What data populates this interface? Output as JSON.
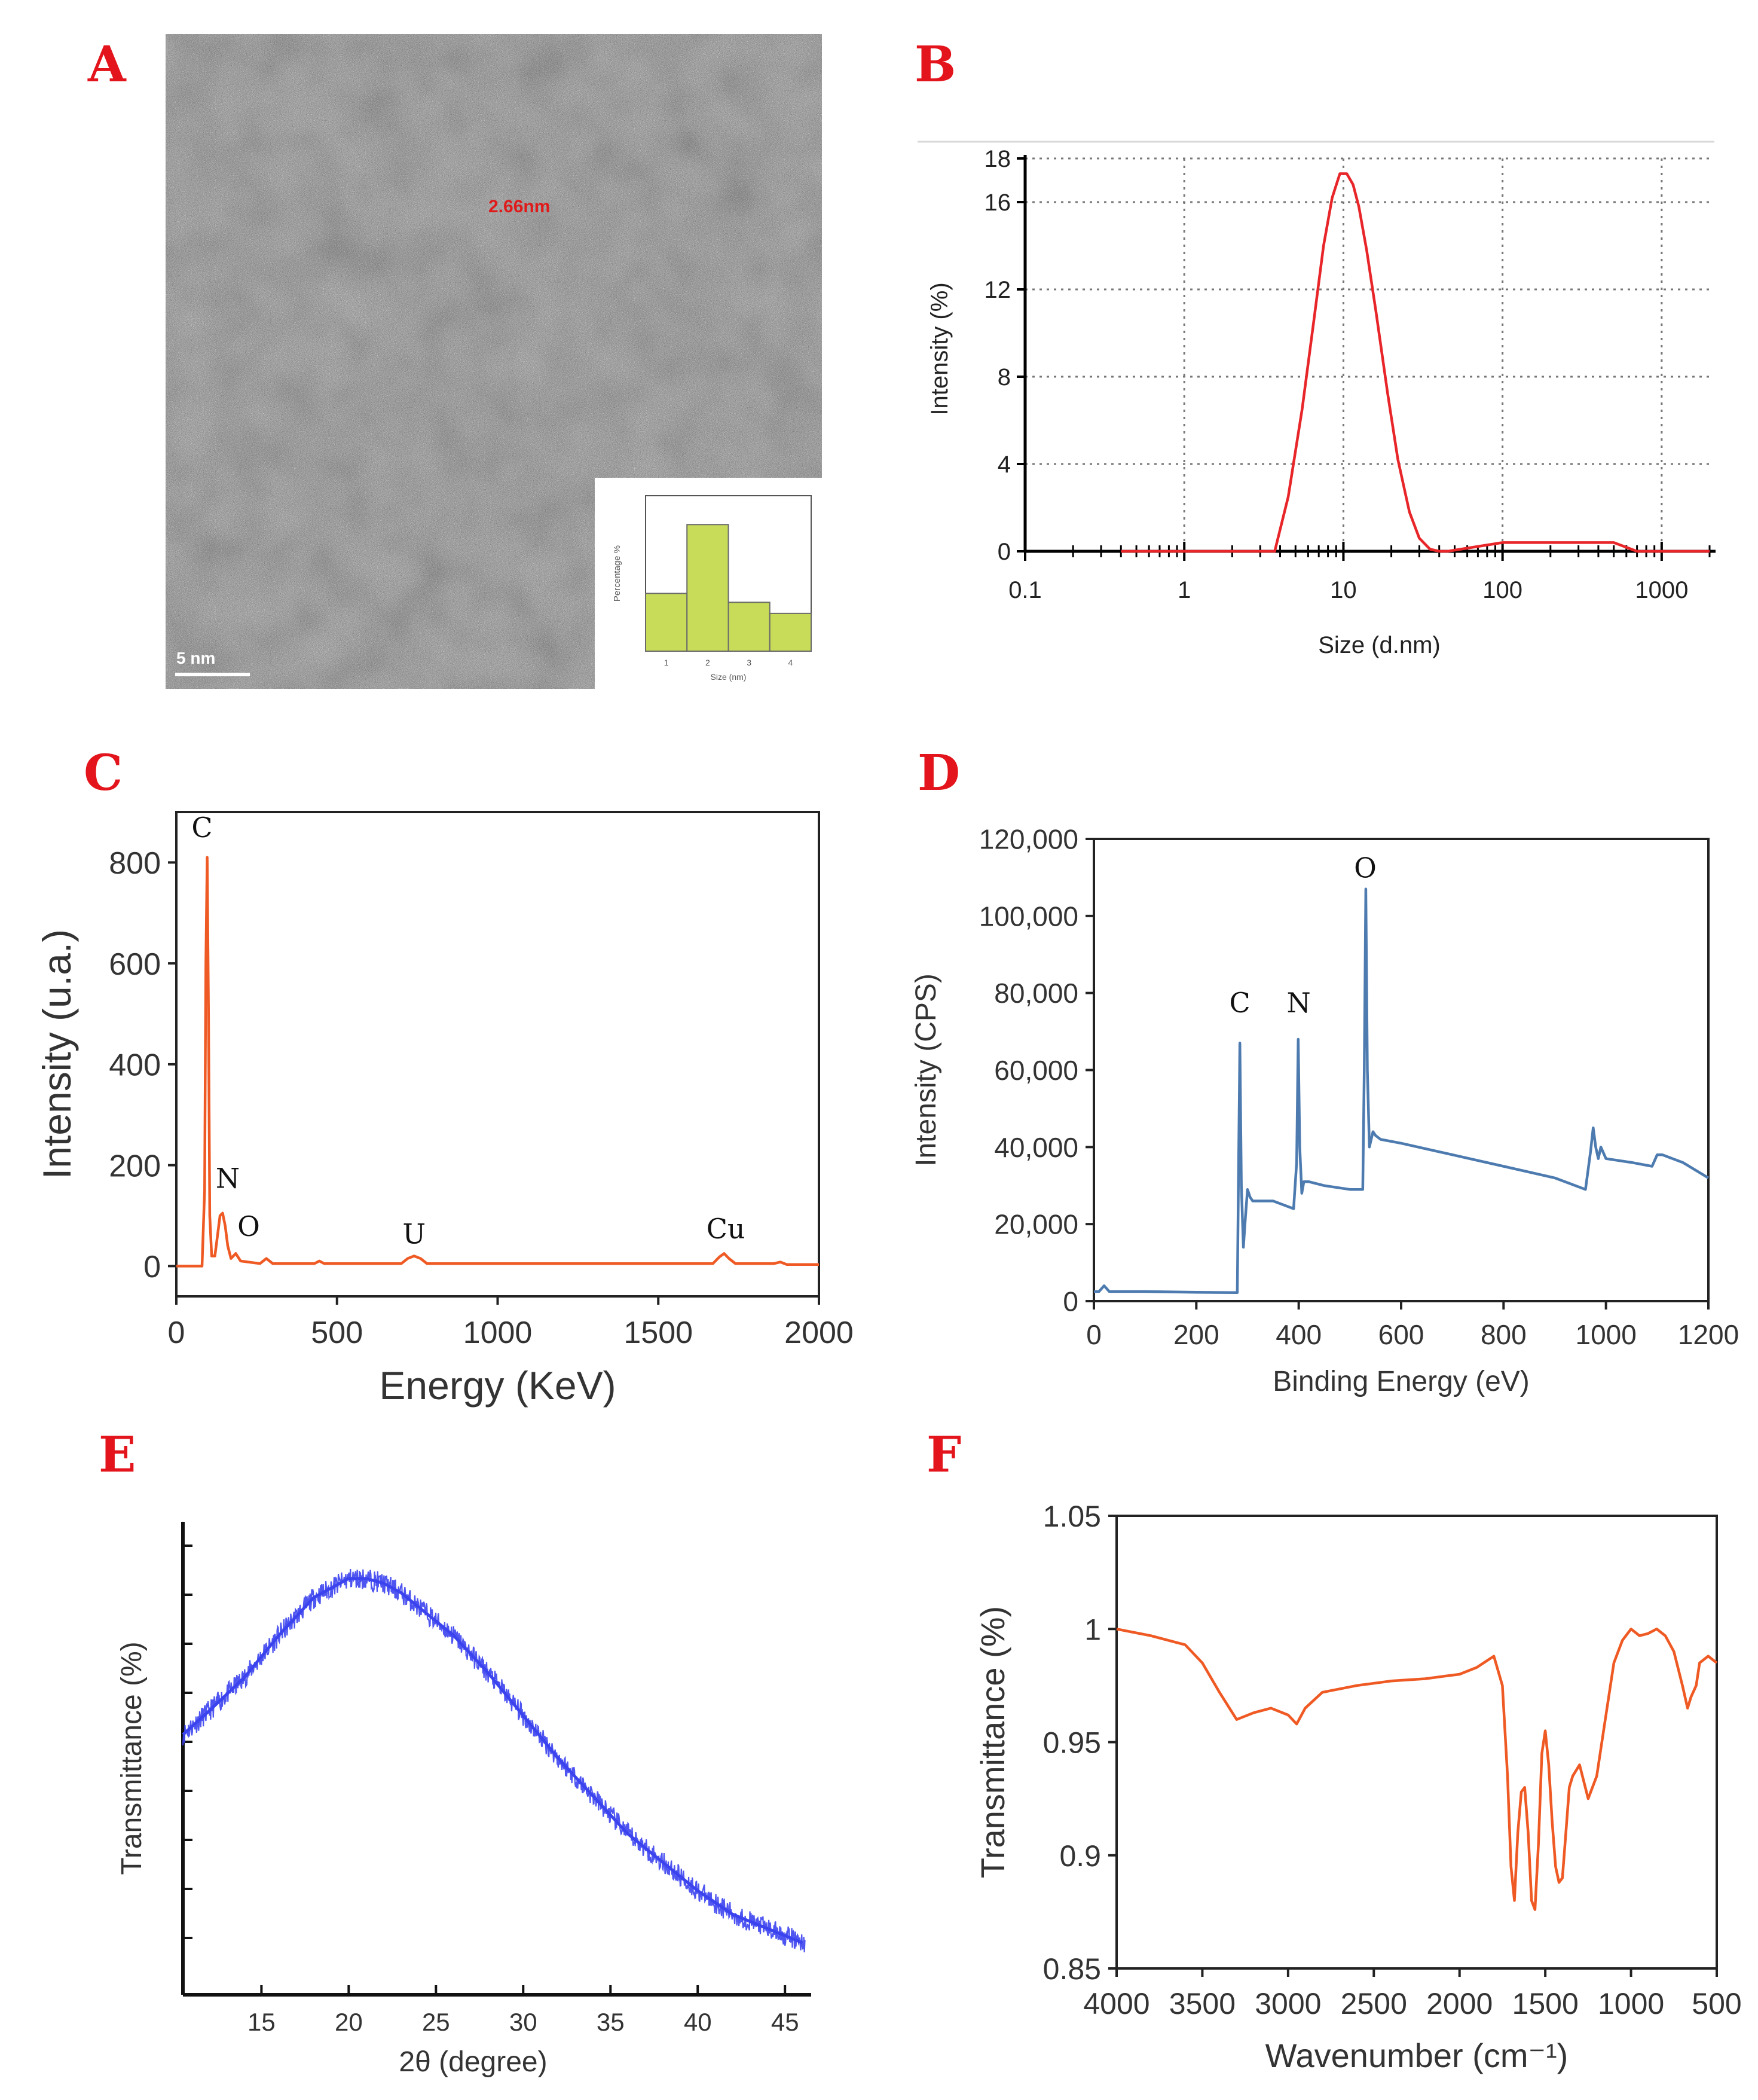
{
  "panels": {
    "A": "A",
    "B": "B",
    "C": "C",
    "D": "D",
    "E": "E",
    "F": "F"
  },
  "colors": {
    "panel_letter": "#e3141b",
    "red": "#e8262a",
    "blue_xps": "#4d7bb0",
    "blue_xrd": "#3b43ee",
    "orange_ftir": "#ef5a24",
    "inset_bar": "#c8dc5a"
  },
  "tem": {
    "measurement_label": "2.66nm",
    "scale_bar_label": "5 nm",
    "inset": {
      "type": "bar",
      "ylabel": "Percentage %",
      "xlabel": "Size (nm)",
      "x_ticks": [
        "1",
        "2",
        "3",
        "4"
      ],
      "categories": [
        "1",
        "2",
        "3",
        "4"
      ],
      "values": [
        26,
        57,
        22,
        17
      ],
      "ylim": [
        0,
        70
      ]
    }
  },
  "chart_data": [
    {
      "id": "B",
      "type": "line",
      "xscale": "log",
      "xlabel": "Size (d.nm)",
      "ylabel": "Intensity (%)",
      "xlim": [
        0.1,
        2000
      ],
      "ylim": [
        0,
        18
      ],
      "x_ticks": [
        0.1,
        1,
        10,
        100,
        1000
      ],
      "x_tick_labels": [
        "0.1",
        "1",
        "10",
        "100",
        "1000"
      ],
      "y_ticks": [
        0,
        4,
        8,
        12,
        16,
        18
      ],
      "y_tick_labels": [
        "0",
        "4",
        "8",
        "12",
        "16",
        "18"
      ],
      "grid": true,
      "series": [
        {
          "name": "Intensity",
          "color": "#e8262a",
          "x": [
            0.4,
            3.7,
            4.5,
            5.5,
            6.5,
            7.5,
            8.5,
            9.5,
            10.5,
            11.5,
            12.5,
            14,
            16,
            19,
            22,
            26,
            30,
            35,
            40,
            45,
            100,
            200,
            500,
            700,
            2000
          ],
          "y": [
            0,
            0,
            2.5,
            6.5,
            10.5,
            14,
            16.2,
            17.3,
            17.3,
            16.8,
            15.8,
            13.8,
            11,
            7.2,
            4.2,
            1.8,
            0.6,
            0.1,
            0,
            0,
            0.4,
            0.4,
            0.4,
            0,
            0
          ]
        }
      ]
    },
    {
      "id": "C",
      "type": "line",
      "xlabel": "Energy (KeV)",
      "ylabel": "Intensity (u.a.)",
      "xlim": [
        0,
        2000
      ],
      "ylim": [
        -60,
        900
      ],
      "x_ticks": [
        0,
        500,
        1000,
        1500,
        2000
      ],
      "x_tick_labels": [
        "0",
        "500",
        "1000",
        "1500",
        "2000"
      ],
      "y_ticks": [
        0,
        200,
        400,
        600,
        800
      ],
      "y_tick_labels": [
        "0",
        "200",
        "400",
        "600",
        "800"
      ],
      "annotations": [
        {
          "text": "C",
          "x": 80,
          "y": 850
        },
        {
          "text": "N",
          "x": 160,
          "y": 155
        },
        {
          "text": "O",
          "x": 225,
          "y": 60
        },
        {
          "text": "U",
          "x": 740,
          "y": 45
        },
        {
          "text": "Cu",
          "x": 1710,
          "y": 55
        }
      ],
      "series": [
        {
          "name": "EDS",
          "color": "#ef5a24",
          "x": [
            0,
            80,
            88,
            92,
            96,
            100,
            104,
            110,
            120,
            128,
            136,
            144,
            152,
            160,
            170,
            185,
            200,
            260,
            280,
            300,
            430,
            445,
            460,
            700,
            720,
            740,
            760,
            780,
            1670,
            1690,
            1705,
            1720,
            1740,
            1860,
            1880,
            1900,
            2000
          ],
          "y": [
            0,
            0,
            150,
            600,
            810,
            500,
            100,
            20,
            20,
            60,
            100,
            105,
            80,
            40,
            15,
            25,
            10,
            5,
            15,
            5,
            5,
            10,
            5,
            5,
            15,
            20,
            15,
            5,
            5,
            18,
            25,
            15,
            5,
            5,
            8,
            3,
            3
          ]
        }
      ]
    },
    {
      "id": "D",
      "type": "line",
      "xlabel": "Binding Energy (eV)",
      "ylabel": "Intensity (CPS)",
      "xlim": [
        0,
        1200
      ],
      "ylim": [
        0,
        120000
      ],
      "x_ticks": [
        0,
        200,
        400,
        600,
        800,
        1000,
        1200
      ],
      "x_tick_labels": [
        "0",
        "200",
        "400",
        "600",
        "800",
        "1000",
        "1200"
      ],
      "y_ticks": [
        0,
        20000,
        40000,
        60000,
        80000,
        100000,
        120000
      ],
      "y_tick_labels": [
        "0",
        "20,000",
        "40,000",
        "60,000",
        "80,000",
        "100,000",
        "120,000"
      ],
      "annotations": [
        {
          "text": "C",
          "x": 285,
          "y": 75000
        },
        {
          "text": "N",
          "x": 400,
          "y": 75000
        },
        {
          "text": "O",
          "x": 530,
          "y": 110000
        }
      ],
      "series": [
        {
          "name": "XPS",
          "color": "#4d7bb0",
          "x": [
            0,
            10,
            20,
            30,
            100,
            200,
            280,
            283,
            285,
            288,
            292,
            296,
            300,
            305,
            310,
            350,
            390,
            396,
            399,
            402,
            406,
            410,
            420,
            450,
            500,
            525,
            528,
            531,
            534,
            538,
            545,
            550,
            560,
            600,
            700,
            800,
            900,
            960,
            970,
            975,
            980,
            985,
            990,
            1000,
            1050,
            1090,
            1100,
            1110,
            1130,
            1150,
            1200
          ],
          "y": [
            2500,
            2500,
            4000,
            2500,
            2500,
            2300,
            2200,
            40000,
            67000,
            30000,
            14000,
            22000,
            29000,
            27000,
            26000,
            26000,
            24000,
            36000,
            68000,
            40000,
            28000,
            31000,
            31000,
            30000,
            29000,
            29000,
            60000,
            107000,
            60000,
            40000,
            44000,
            43000,
            42000,
            41000,
            38000,
            35000,
            32000,
            29000,
            39000,
            45000,
            40000,
            37000,
            40000,
            37000,
            36000,
            35000,
            38000,
            38000,
            37000,
            36000,
            32000
          ]
        }
      ]
    },
    {
      "id": "E",
      "type": "line",
      "xlabel": "2θ (degree)",
      "ylabel": "Transmittance (%)",
      "xlim": [
        10.5,
        46.5
      ],
      "ylim": [
        0,
        100
      ],
      "x_ticks": [
        15,
        20,
        25,
        30,
        35,
        40,
        45
      ],
      "x_tick_labels": [
        "15",
        "20",
        "25",
        "30",
        "35",
        "40",
        "45"
      ],
      "series": [
        {
          "name": "XRD",
          "color": "#3b43ee",
          "x": [
            10.5,
            12,
            14,
            16,
            18,
            19,
            20,
            21,
            22,
            23,
            24,
            26,
            28,
            30,
            32,
            34,
            36,
            38,
            40,
            42,
            44,
            46
          ],
          "y": [
            55,
            60,
            67,
            76,
            84,
            86,
            88,
            88,
            87,
            85,
            82,
            76,
            68,
            59,
            50,
            42,
            34,
            28,
            22,
            17,
            14,
            11
          ]
        }
      ]
    },
    {
      "id": "F",
      "type": "line",
      "x_reversed": true,
      "xlabel": "Wavenumber (cm⁻¹)",
      "ylabel": "Transmittance (%)",
      "xlim": [
        4000,
        500
      ],
      "ylim": [
        0.85,
        1.05
      ],
      "x_ticks": [
        4000,
        3500,
        3000,
        2500,
        2000,
        1500,
        1000,
        500
      ],
      "x_tick_labels": [
        "4000",
        "3500",
        "3000",
        "2500",
        "2000",
        "1500",
        "1000",
        "500"
      ],
      "y_ticks": [
        0.85,
        0.9,
        0.95,
        1,
        1.05
      ],
      "y_tick_labels": [
        "0.85",
        "0.9",
        "0.95",
        "1",
        "1.05"
      ],
      "series": [
        {
          "name": "FTIR",
          "color": "#ef5a24",
          "x": [
            4000,
            3800,
            3700,
            3600,
            3500,
            3400,
            3300,
            3200,
            3100,
            3000,
            2950,
            2900,
            2800,
            2600,
            2400,
            2200,
            2100,
            2000,
            1900,
            1800,
            1750,
            1720,
            1700,
            1680,
            1660,
            1640,
            1620,
            1600,
            1580,
            1560,
            1540,
            1520,
            1500,
            1480,
            1460,
            1440,
            1420,
            1400,
            1380,
            1360,
            1340,
            1300,
            1250,
            1200,
            1150,
            1100,
            1050,
            1000,
            950,
            900,
            850,
            800,
            750,
            700,
            670,
            650,
            620,
            600,
            550,
            500
          ],
          "y": [
            1.0,
            0.997,
            0.995,
            0.993,
            0.985,
            0.972,
            0.96,
            0.963,
            0.965,
            0.962,
            0.958,
            0.965,
            0.972,
            0.975,
            0.977,
            0.978,
            0.979,
            0.98,
            0.983,
            0.988,
            0.975,
            0.935,
            0.895,
            0.88,
            0.91,
            0.928,
            0.93,
            0.91,
            0.88,
            0.876,
            0.905,
            0.945,
            0.955,
            0.94,
            0.915,
            0.895,
            0.888,
            0.89,
            0.91,
            0.93,
            0.935,
            0.94,
            0.925,
            0.935,
            0.96,
            0.985,
            0.995,
            1.0,
            0.997,
            0.998,
            1.0,
            0.997,
            0.99,
            0.975,
            0.965,
            0.97,
            0.975,
            0.985,
            0.988,
            0.985
          ]
        }
      ]
    }
  ]
}
